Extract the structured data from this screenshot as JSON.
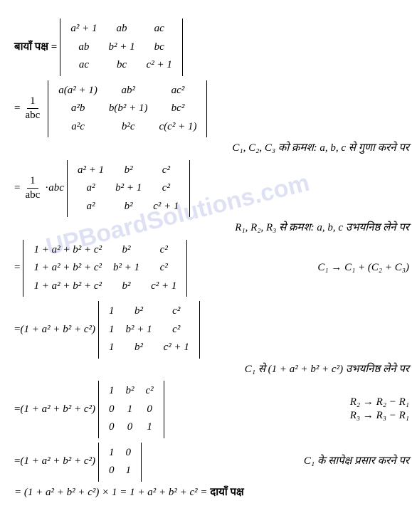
{
  "lhs_label": "बायाँ पक्ष =",
  "rhs_label": "दायाँ पक्ष",
  "eq": "=",
  "dot": "·",
  "frac1_n": "1",
  "frac1_d": "abc",
  "abc": "abc",
  "det1": [
    "a² + 1",
    "ab",
    "ac",
    "ab",
    "b² + 1",
    "bc",
    "ac",
    "bc",
    "c² + 1"
  ],
  "det2": [
    "a(a² + 1)",
    "ab²",
    "ac²",
    "a²b",
    "b(b² + 1)",
    "bc²",
    "a²c",
    "b²c",
    "c(c² + 1)"
  ],
  "note1": "C₁, C₂, C₃ को क्रमश: a, b, c से गुणा करने पर",
  "det3": [
    "a² + 1",
    "b²",
    "c²",
    "a²",
    "b² + 1",
    "c²",
    "a²",
    "b²",
    "c² + 1"
  ],
  "note2": "R₁, R₂, R₃ से क्रमश: a, b, c उभयनिष्ठ लेने पर",
  "det4": [
    "1 + a² + b² + c²",
    "b²",
    "c²",
    "1 + a² + b² + c²",
    "b² + 1",
    "c²",
    "1 + a² + b² + c²",
    "b²",
    "c² + 1"
  ],
  "op1": "C₁ → C₁ + (C₂ + C₃)",
  "factor": "(1 + a² + b² + c²)",
  "det5": [
    "1",
    "b²",
    "c²",
    "1",
    "b² + 1",
    "c²",
    "1",
    "b²",
    "c² + 1"
  ],
  "note3": "C₁ से (1 + a² + b² + c²) उभयनिष्ठ लेने पर",
  "det6": [
    "1",
    "b²",
    "c²",
    "0",
    "1",
    "0",
    "0",
    "0",
    "1"
  ],
  "op2a": "R₂ → R₂ − R₁",
  "op2b": "R₃ → R₃ − R₁",
  "det7": [
    "1",
    "0",
    "0",
    "1"
  ],
  "note4": "C₁ के सापेक्ष प्रसार करने पर",
  "final": "= (1 + a² + b² + c²) × 1 = 1 + a² + b² + c² =",
  "watermark": "UPBoardSolutions.com"
}
